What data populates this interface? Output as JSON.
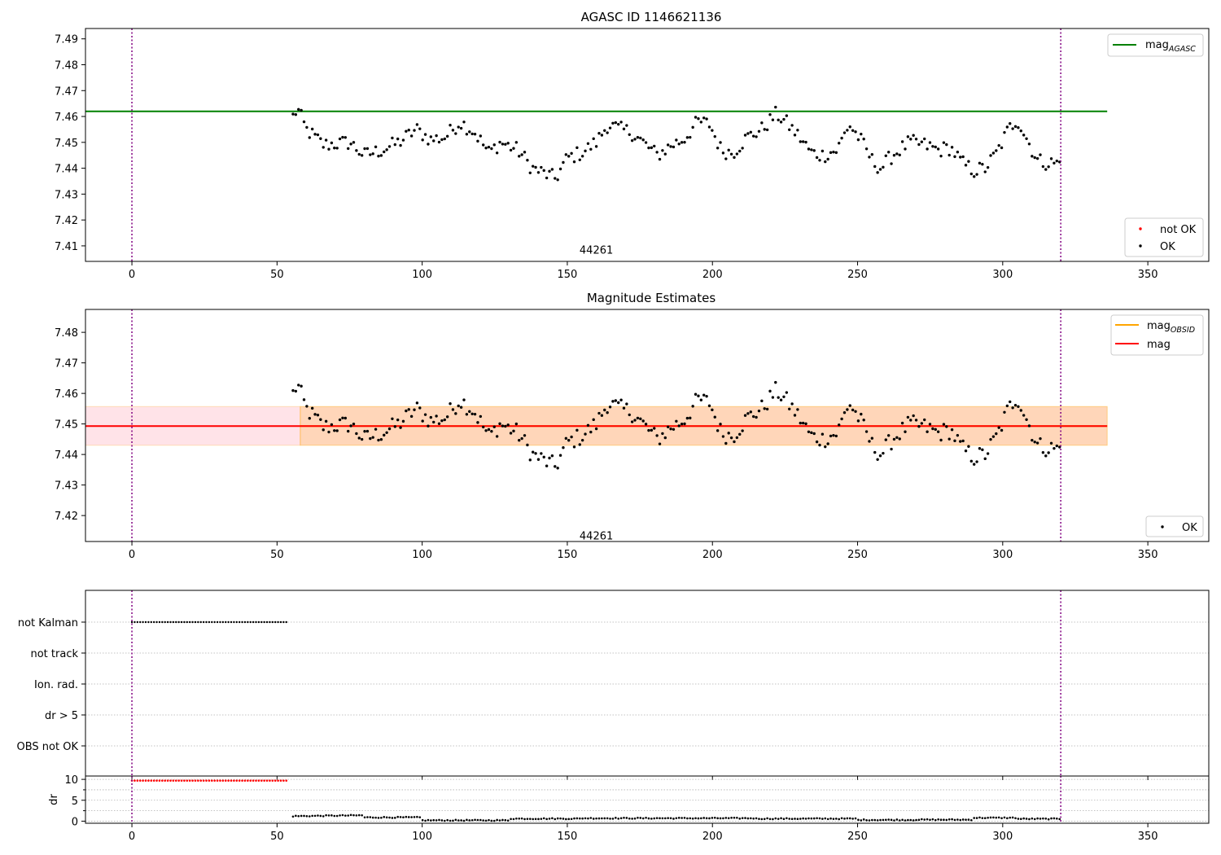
{
  "chart_data": [
    {
      "type": "scatter",
      "title": "AGASC ID 1146621136",
      "xlim": [
        -16,
        371
      ],
      "ylim": [
        7.404,
        7.494
      ],
      "xticks": [
        0,
        50,
        100,
        150,
        200,
        250,
        300,
        350
      ],
      "yticks": [
        7.41,
        7.42,
        7.43,
        7.44,
        7.45,
        7.46,
        7.47,
        7.48,
        7.49
      ],
      "obsid_label": {
        "text": "44261",
        "x": 160,
        "y": 7.4085
      },
      "vlines": [
        0,
        320
      ],
      "hline": {
        "name": "mag",
        "subscript": "AGASC",
        "y": 7.462,
        "x_range": [
          -16,
          336
        ],
        "color": "#008000"
      },
      "legend_lines": [
        {
          "name": "mag",
          "subscript": "AGASC",
          "color": "#008000"
        }
      ],
      "legend_points": [
        {
          "name": "not OK",
          "color": "#ff0000"
        },
        {
          "name": "OK",
          "color": "#000000"
        }
      ],
      "grid": false
    },
    {
      "type": "scatter",
      "title": "Magnitude Estimates",
      "xlim": [
        -16,
        371
      ],
      "ylim": [
        7.4115,
        7.4875
      ],
      "xticks": [
        0,
        50,
        100,
        150,
        200,
        250,
        300,
        350
      ],
      "yticks": [
        7.42,
        7.43,
        7.44,
        7.45,
        7.46,
        7.47,
        7.48
      ],
      "obsid_label": {
        "text": "44261",
        "x": 160,
        "y": 7.4135
      },
      "vlines": [
        0,
        320
      ],
      "mag_line": {
        "name": "mag",
        "y": 7.4493,
        "x_range": [
          -16,
          336
        ],
        "color": "#ff0000"
      },
      "mag_obsid_line": {
        "name": "mag",
        "subscript": "OBSID",
        "y": 7.4493,
        "x_range": [
          58,
          336
        ],
        "color": "#ffa500"
      },
      "mag_band": [
        7.443,
        7.4557
      ],
      "legend_lines": [
        {
          "name": "mag",
          "subscript": "OBSID",
          "color": "#ffa500"
        },
        {
          "name": "mag",
          "subscript": "",
          "color": "#ff0000"
        }
      ],
      "legend_points": [
        {
          "name": "OK",
          "color": "#000000"
        }
      ],
      "grid": false
    },
    {
      "type": "scatter",
      "title": "",
      "xlim": [
        -16,
        371
      ],
      "xticks": [
        0,
        50,
        100,
        150,
        200,
        250,
        300,
        350
      ],
      "flags": [
        "not Kalman",
        "not track",
        "Ion. rad.",
        "dr > 5",
        "OBS not OK"
      ],
      "not_kalman_range": [
        0,
        54
      ],
      "vlines": [
        0,
        320
      ],
      "grid": true
    },
    {
      "type": "scatter",
      "title": "",
      "ylabel": "dr",
      "xlim": [
        -16,
        371
      ],
      "ylim": [
        -0.5,
        10.8
      ],
      "yticks": [
        0,
        5,
        10
      ],
      "xticks": [
        0,
        50,
        100,
        150,
        200,
        250,
        300,
        350
      ],
      "dr_bad": {
        "y": 9.7,
        "x_range": [
          0,
          54
        ],
        "color": "#ff0000"
      },
      "vlines": [
        0,
        320
      ],
      "grid": true
    }
  ]
}
